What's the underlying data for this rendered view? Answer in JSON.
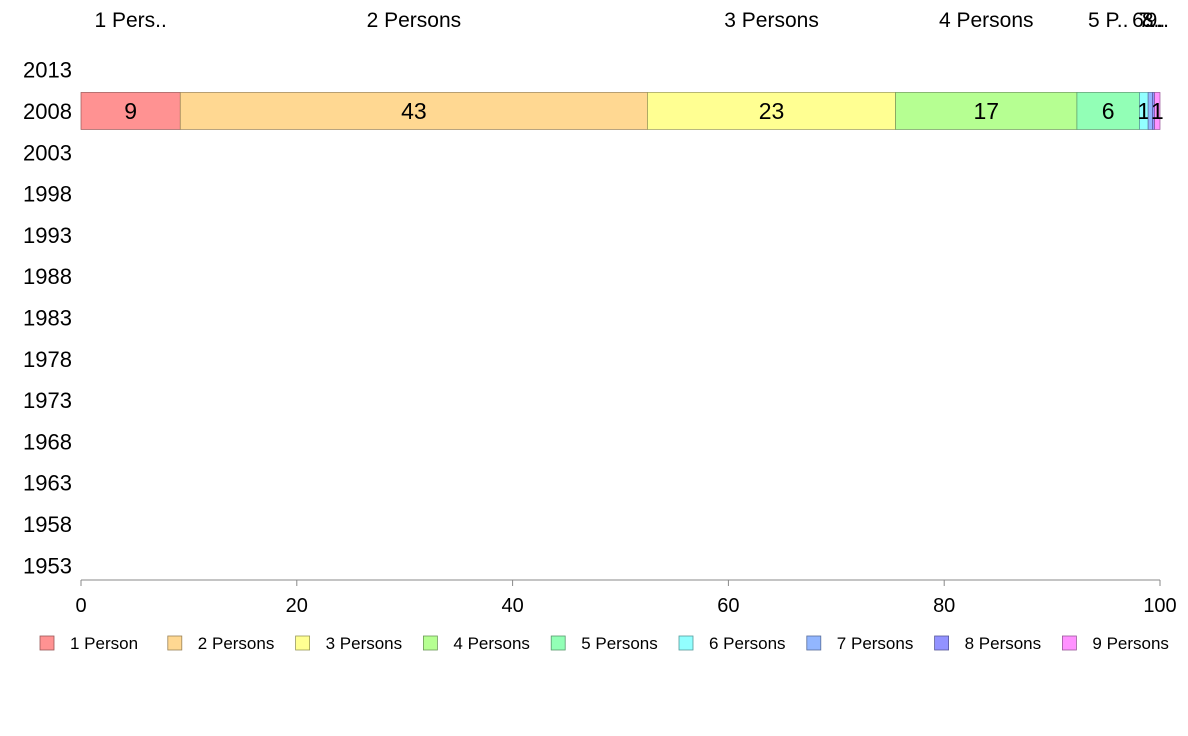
{
  "chart_data": {
    "type": "bar",
    "orientation": "horizontal",
    "stacked": true,
    "y_categories": [
      "2013",
      "2008",
      "2003",
      "1998",
      "1993",
      "1988",
      "1983",
      "1978",
      "1973",
      "1968",
      "1963",
      "1958",
      "1953"
    ],
    "x_ticks": [
      "0",
      "20",
      "40",
      "60",
      "80",
      "100"
    ],
    "xlim": [
      0,
      100
    ],
    "grid": false,
    "legend_position": "bottom",
    "top_labels": [
      "1 Pers..",
      "2 Persons",
      "3 Persons",
      "4 Persons",
      "5 P..",
      "6..",
      "7..",
      "8..",
      "9.."
    ],
    "series": [
      {
        "name": "1 Person",
        "color": "#ff9292",
        "values": {
          "2008": 9.2
        },
        "label": "9"
      },
      {
        "name": "2 Persons",
        "color": "#ffd892",
        "values": {
          "2008": 43.3
        },
        "label": "43"
      },
      {
        "name": "3 Persons",
        "color": "#ffff92",
        "values": {
          "2008": 23.0
        },
        "label": "23"
      },
      {
        "name": "4 Persons",
        "color": "#b6ff92",
        "values": {
          "2008": 16.8
        },
        "label": "17"
      },
      {
        "name": "5 Persons",
        "color": "#92ffb6",
        "values": {
          "2008": 5.8
        },
        "label": "6"
      },
      {
        "name": "6 Persons",
        "color": "#92ffff",
        "values": {
          "2008": 0.8
        },
        "label": "1"
      },
      {
        "name": "7 Persons",
        "color": "#92b6ff",
        "values": {
          "2008": 0.4
        },
        "label": ""
      },
      {
        "name": "8 Persons",
        "color": "#9292ff",
        "values": {
          "2008": 0.2
        },
        "label": ""
      },
      {
        "name": "9 Persons",
        "color": "#ff92ff",
        "values": {
          "2008": 0.5
        },
        "label": "1"
      }
    ]
  }
}
